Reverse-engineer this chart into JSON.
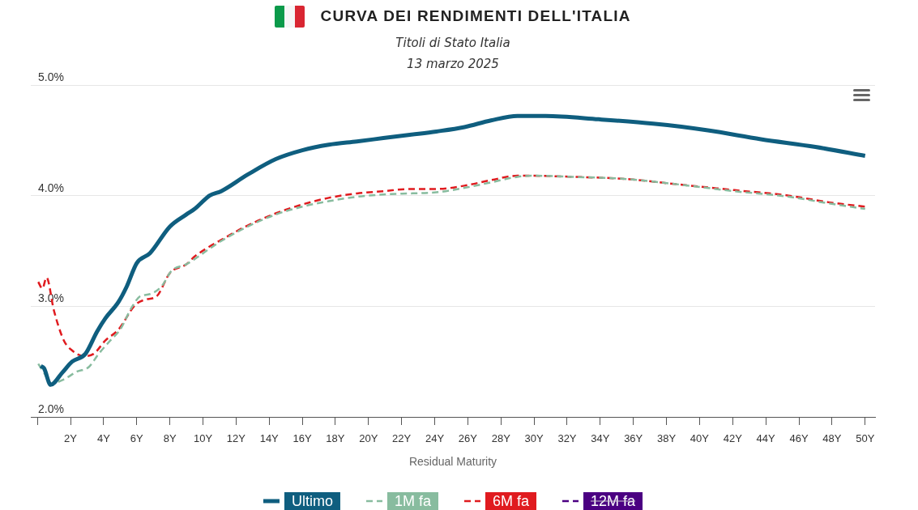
{
  "chart_data": {
    "type": "line",
    "title": "CURVA DEI RENDIMENTI DELL'ITALIA",
    "subtitle": "Titoli di Stato Italia\n13 marzo 2025",
    "xlabel": "Residual Maturity",
    "xlim": [
      -0.4,
      50.6
    ],
    "xticks": [
      {
        "value": 0,
        "label": null
      },
      {
        "value": 2,
        "label": "2Y"
      },
      {
        "value": 4,
        "label": "4Y"
      },
      {
        "value": 6,
        "label": "6Y"
      },
      {
        "value": 8,
        "label": "8Y"
      },
      {
        "value": 10,
        "label": "10Y"
      },
      {
        "value": 12,
        "label": "12Y"
      },
      {
        "value": 14,
        "label": "14Y"
      },
      {
        "value": 16,
        "label": "16Y"
      },
      {
        "value": 18,
        "label": "18Y"
      },
      {
        "value": 20,
        "label": "20Y"
      },
      {
        "value": 22,
        "label": "22Y"
      },
      {
        "value": 24,
        "label": "24Y"
      },
      {
        "value": 26,
        "label": "26Y"
      },
      {
        "value": 28,
        "label": "28Y"
      },
      {
        "value": 30,
        "label": "30Y"
      },
      {
        "value": 32,
        "label": "32Y"
      },
      {
        "value": 34,
        "label": "34Y"
      },
      {
        "value": 36,
        "label": "36Y"
      },
      {
        "value": 38,
        "label": "38Y"
      },
      {
        "value": 40,
        "label": "40Y"
      },
      {
        "value": 42,
        "label": "42Y"
      },
      {
        "value": 44,
        "label": "44Y"
      },
      {
        "value": 46,
        "label": "46Y"
      },
      {
        "value": 48,
        "label": "48Y"
      },
      {
        "value": 50,
        "label": "50Y"
      }
    ],
    "ylim": [
      2,
      5
    ],
    "yticks": [
      {
        "value": 2,
        "label": "2.0%"
      },
      {
        "value": 3,
        "label": "3.0%"
      },
      {
        "value": 4,
        "label": "4.0%"
      },
      {
        "value": 5,
        "label": "5.0%"
      }
    ],
    "grid": "y",
    "legend": "bottom",
    "marker": "none",
    "series": [
      {
        "name": "Ultimo",
        "color": "#0f5e7f",
        "line_style": "solid",
        "x": [
          0.2,
          0.4,
          0.8,
          1.5,
          2.1,
          2.9,
          3.6,
          4.1,
          4.9,
          5.4,
          6.0,
          6.8,
          8.0,
          9.0,
          9.5,
          10.4,
          11.1,
          12.7,
          14.4,
          16.0,
          17.6,
          19.3,
          20.9,
          22.5,
          24.1,
          25.8,
          27.4,
          29.0,
          30.7,
          33.9,
          37.2,
          40.5,
          43.7,
          47.0,
          50
        ],
        "values": [
          2.46,
          2.44,
          2.29,
          2.4,
          2.5,
          2.57,
          2.77,
          2.89,
          3.04,
          3.18,
          3.39,
          3.48,
          3.72,
          3.83,
          3.88,
          4.0,
          4.04,
          4.19,
          4.33,
          4.41,
          4.46,
          4.49,
          4.52,
          4.55,
          4.58,
          4.62,
          4.68,
          4.72,
          4.72,
          4.69,
          4.65,
          4.59,
          4.51,
          4.44,
          4.36
        ]
      },
      {
        "name": "1M fa",
        "color": "#88bc9f",
        "line_style": "dashed",
        "x": [
          0.05,
          0.4,
          0.8,
          1.6,
          2.4,
          3.1,
          3.7,
          4.4,
          5.0,
          5.7,
          6.2,
          6.8,
          7.5,
          8.1,
          9.0,
          10.4,
          11.1,
          12.7,
          14.4,
          16.0,
          17.6,
          19.3,
          20.9,
          22.5,
          24.1,
          25.8,
          27.4,
          29.0,
          29.9,
          32.3,
          35.6,
          38.8,
          42.1,
          45.4,
          47.8,
          50
        ],
        "values": [
          2.48,
          2.4,
          2.3,
          2.34,
          2.41,
          2.45,
          2.57,
          2.69,
          2.79,
          2.99,
          3.09,
          3.11,
          3.18,
          3.32,
          3.38,
          3.52,
          3.59,
          3.72,
          3.83,
          3.9,
          3.95,
          3.99,
          4.01,
          4.02,
          4.03,
          4.07,
          4.12,
          4.17,
          4.18,
          4.17,
          4.15,
          4.1,
          4.04,
          3.99,
          3.93,
          3.88
        ]
      },
      {
        "name": "6M fa",
        "color": "#e01b1f",
        "line_style": "dashed",
        "x": [
          0.05,
          0.3,
          0.55,
          1.0,
          1.6,
          2.1,
          2.8,
          3.4,
          4.1,
          4.9,
          5.9,
          6.5,
          7.2,
          8.0,
          9.0,
          9.5,
          10.4,
          11.1,
          12.7,
          14.4,
          16.0,
          17.6,
          19.3,
          20.9,
          22.5,
          24.1,
          25.8,
          27.4,
          29.0,
          29.9,
          32.3,
          35.6,
          38.8,
          42.1,
          45.4,
          47.8,
          50
        ],
        "values": [
          3.22,
          3.16,
          3.26,
          2.96,
          2.69,
          2.6,
          2.55,
          2.57,
          2.69,
          2.79,
          3.01,
          3.06,
          3.09,
          3.3,
          3.38,
          3.45,
          3.54,
          3.6,
          3.73,
          3.84,
          3.92,
          3.98,
          4.02,
          4.04,
          4.06,
          4.06,
          4.09,
          4.14,
          4.18,
          4.18,
          4.17,
          4.15,
          4.1,
          4.05,
          4.0,
          3.94,
          3.9
        ]
      },
      {
        "name": "12M fa",
        "color": "#4b0082",
        "line_style": "dashed"
      }
    ]
  }
}
